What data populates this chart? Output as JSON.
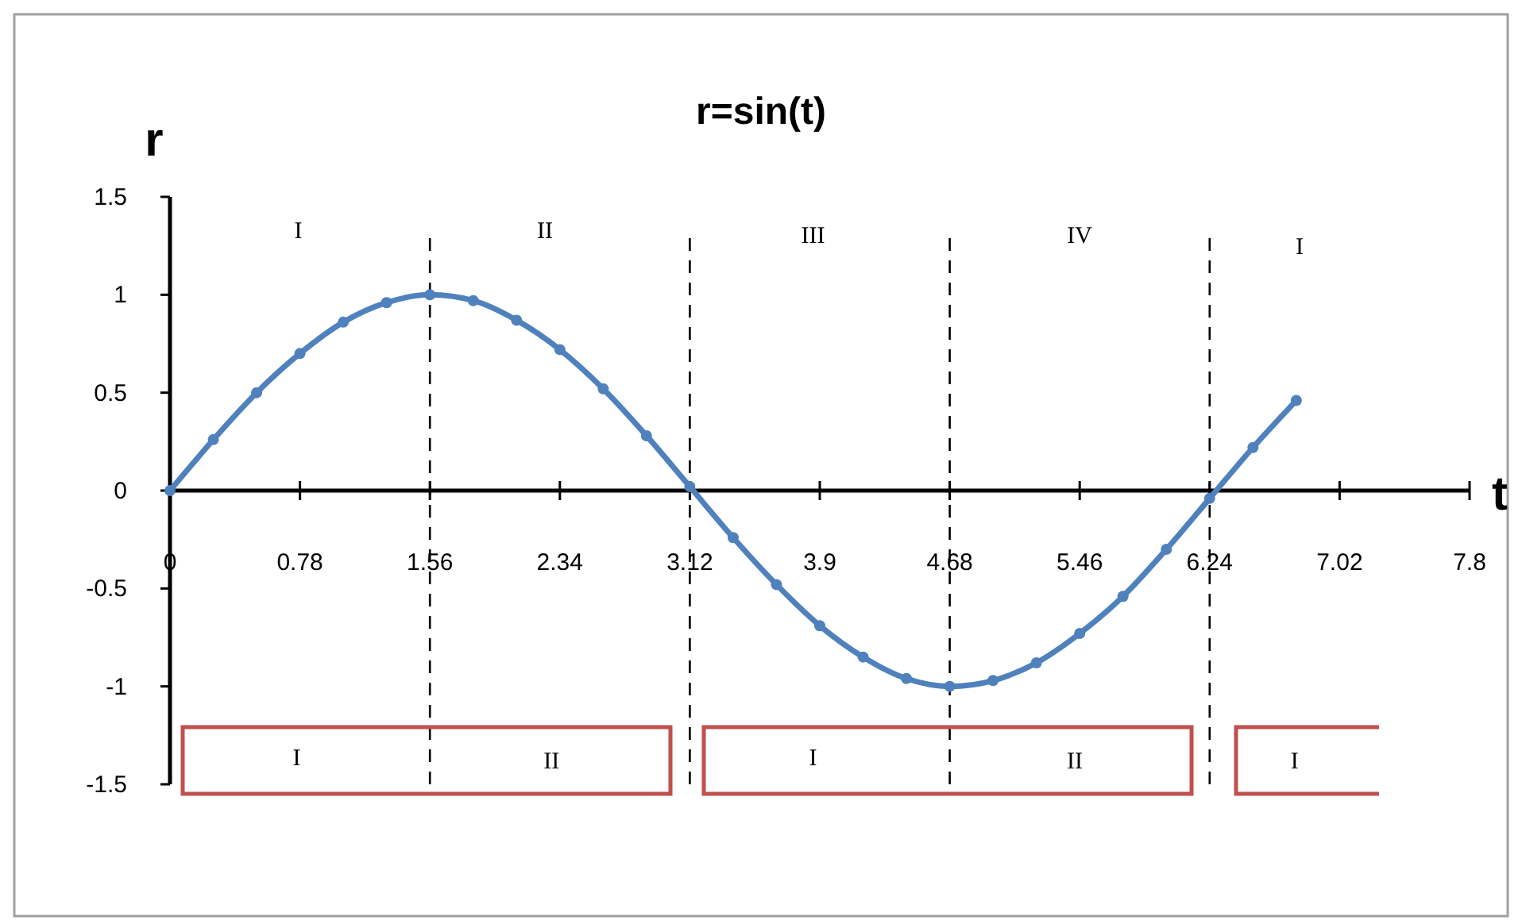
{
  "chart_data": {
    "type": "line",
    "title": "r=sin(t)",
    "xlabel": "t",
    "ylabel": "r",
    "x": [
      0,
      0.26,
      0.52,
      0.78,
      1.04,
      1.3,
      1.56,
      1.82,
      2.08,
      2.34,
      2.6,
      2.86,
      3.12,
      3.38,
      3.64,
      3.9,
      4.16,
      4.42,
      4.68,
      4.94,
      5.2,
      5.46,
      5.72,
      5.98,
      6.24,
      6.5,
      6.76
    ],
    "series": [
      {
        "color": "#4f81bd",
        "values": [
          0,
          0.26,
          0.5,
          0.7,
          0.86,
          0.96,
          1,
          0.97,
          0.87,
          0.72,
          0.52,
          0.28,
          0.02,
          -0.24,
          -0.48,
          -0.69,
          -0.85,
          -0.96,
          -1,
          -0.97,
          -0.88,
          -0.73,
          -0.54,
          -0.3,
          -0.04,
          0.22,
          0.46
        ]
      }
    ],
    "xlim": [
      0,
      7.8
    ],
    "xticks": [
      0,
      0.78,
      1.56,
      2.34,
      3.12,
      3.9,
      4.68,
      5.46,
      6.24,
      7.02,
      7.8
    ],
    "ylim": [
      -1.5,
      1.5
    ],
    "yticks": [
      -1.5,
      -1,
      -0.5,
      0,
      0.5,
      1,
      1.5
    ],
    "ref_lines": [
      {
        "axis": "x",
        "value": 1.56,
        "color": "#000000",
        "line_style": "dashed"
      },
      {
        "axis": "x",
        "value": 3.12,
        "color": "#000000",
        "line_style": "dashed"
      },
      {
        "axis": "x",
        "value": 4.68,
        "color": "#000000",
        "line_style": "dashed"
      },
      {
        "axis": "x",
        "value": 6.24,
        "color": "#000000",
        "line_style": "dashed"
      }
    ],
    "annotations": [
      "I",
      "II",
      "III",
      "IV",
      "I",
      "I",
      "II",
      "I",
      "II",
      "I"
    ],
    "marker": "circle",
    "line_style": "solid"
  }
}
